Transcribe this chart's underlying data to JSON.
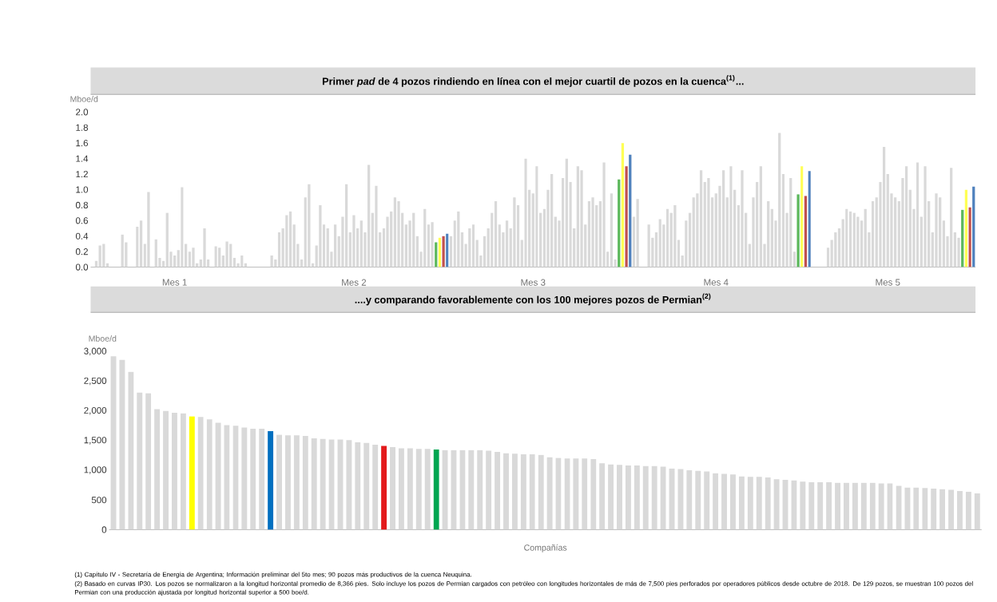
{
  "chart_data": [
    {
      "type": "bar",
      "title": "Primer *pad* de 4 pozos rindiendo en línea con el mejor cuartil de pozos en la cuenca$^{(1)}$...",
      "ylabel": "Mboe/d",
      "ylim": [
        0,
        2
      ],
      "yticks": [
        {
          "value": 0,
          "label": "0.0"
        },
        0.2,
        0.4,
        0.6,
        0.8,
        {
          "value": 1,
          "label": "1.0"
        },
        1.2,
        1.4,
        1.6,
        1.8,
        {
          "value": 2,
          "label": "2.0"
        }
      ],
      "categories": [
        null,
        null,
        null,
        null,
        null,
        null,
        null,
        null,
        null,
        null,
        null,
        null,
        null,
        null,
        null,
        null,
        null,
        null,
        null,
        null,
        null,
        null,
        "Mes 1",
        null,
        null,
        null,
        null,
        null,
        null,
        null,
        null,
        null,
        null,
        null,
        null,
        null,
        null,
        null,
        null,
        null,
        null,
        null,
        null,
        null,
        null,
        null,
        null,
        null,
        null,
        null,
        null,
        null,
        null,
        null,
        null,
        null,
        null,
        null,
        null,
        null,
        null,
        null,
        null,
        null,
        null,
        null,
        null,
        null,
        null,
        null,
        "Mes 2",
        null,
        null,
        null,
        null,
        null,
        null,
        null,
        null,
        null,
        null,
        null,
        null,
        null,
        null,
        null,
        null,
        null,
        null,
        null,
        null,
        null,
        null,
        null,
        null,
        null,
        null,
        null,
        null,
        null,
        null,
        null,
        null,
        null,
        null,
        null,
        null,
        null,
        null,
        null,
        null,
        null,
        null,
        null,
        null,
        null,
        null,
        null,
        "Mes 3",
        null,
        null,
        null,
        null,
        null,
        null,
        null,
        null,
        null,
        null,
        null,
        null,
        null,
        null,
        null,
        null,
        null,
        null,
        null,
        null,
        null,
        null,
        null,
        null,
        null,
        null,
        null,
        null,
        null,
        null,
        null,
        null,
        null,
        null,
        null,
        null,
        null,
        null,
        null,
        null,
        null,
        null,
        null,
        null,
        null,
        null,
        null,
        null,
        "Mes 4",
        null,
        null,
        null,
        null,
        null,
        null,
        null,
        null,
        null,
        null,
        null,
        null,
        null,
        null,
        null,
        null,
        null,
        null,
        null,
        null,
        null,
        null,
        null,
        null,
        null,
        null,
        null,
        null,
        null,
        null,
        null,
        null,
        null,
        null,
        null,
        null,
        null,
        null,
        null,
        null,
        null,
        null,
        null,
        null,
        null,
        "Mes 5",
        null,
        null,
        null,
        null,
        null,
        null,
        null,
        null,
        null,
        null,
        null,
        null,
        null,
        null,
        null,
        null,
        null,
        null,
        null,
        null,
        null,
        null,
        null
      ],
      "values": [
        0,
        0.08,
        0.28,
        0.3,
        0.05,
        0,
        0,
        0,
        0.42,
        0.32,
        0,
        0,
        0.52,
        0.6,
        0.3,
        0.97,
        0,
        0.36,
        0.12,
        0.08,
        0.7,
        0.2,
        0.15,
        0.22,
        1.03,
        0.3,
        0.2,
        0.25,
        0.05,
        0.1,
        0.5,
        0.1,
        0,
        0.27,
        0.25,
        0.15,
        0.33,
        0.3,
        0.12,
        0.05,
        0.15,
        0.05,
        0,
        0,
        null,
        null,
        null,
        null,
        0.15,
        0.1,
        0.45,
        0.5,
        0.67,
        0.72,
        0.55,
        0.3,
        0.1,
        0.9,
        1.07,
        0.05,
        0.28,
        0.8,
        0.55,
        0.5,
        0.2,
        0.55,
        0.4,
        0.65,
        1.07,
        0.45,
        0.67,
        0.5,
        0.6,
        0.45,
        1.32,
        0.7,
        1.05,
        0.45,
        0.5,
        0.65,
        0.72,
        0.9,
        0.85,
        0.7,
        0.55,
        0.6,
        0.7,
        0.4,
        0.2,
        0.75,
        0.55,
        0.58,
        0.32,
        0.38,
        0.4,
        0.43,
        0.4,
        0.6,
        0.72,
        0.45,
        0.3,
        0.5,
        0.55,
        0.35,
        0.15,
        0.4,
        0.5,
        0.7,
        0.85,
        0.55,
        0.45,
        0.6,
        0.5,
        0.9,
        0.8,
        0.35,
        1.4,
        1.0,
        0.95,
        1.3,
        0.7,
        0.75,
        1.0,
        1.2,
        0.65,
        0.6,
        1.15,
        1.4,
        1.1,
        0.5,
        1.3,
        1.25,
        0.55,
        0.85,
        0.9,
        0.8,
        0.85,
        1.35,
        0.2,
        0.95,
        0.1,
        1.13,
        1.6,
        1.3,
        1.45,
        0.65,
        0.88,
        0,
        0,
        0.55,
        0.38,
        0.45,
        0.62,
        0.55,
        0.75,
        0.7,
        0.8,
        0.35,
        0.15,
        0.6,
        0.7,
        0.9,
        0.95,
        1.25,
        1.1,
        1.15,
        0.9,
        0.95,
        1.05,
        1.25,
        0.9,
        1.3,
        1.0,
        0.8,
        1.25,
        0.7,
        0.3,
        0.9,
        1.1,
        1.3,
        0.3,
        0.85,
        0.75,
        0.6,
        1.73,
        1.2,
        0.7,
        1.15,
        0.2,
        0.94,
        1.3,
        0.92,
        1.24,
        0,
        0,
        0,
        0,
        0.25,
        0.35,
        0.45,
        0.5,
        0.62,
        0.75,
        0.72,
        0.7,
        0.65,
        0.6,
        0.75,
        0.45,
        0.85,
        0.9,
        1.1,
        1.55,
        1.2,
        0.95,
        0.9,
        0.85,
        1.15,
        1.3,
        1.0,
        0.75,
        1.35,
        0.65,
        1.3,
        0.85,
        0.45,
        0.95,
        0.9,
        0.6,
        0.4,
        1.28,
        0.45,
        0.38,
        0.74,
        1.0,
        0.77,
        1.04
      ],
      "colors": [
        "#d9d9d9",
        "#d9d9d9",
        "#d9d9d9",
        "#d9d9d9",
        "#d9d9d9",
        "#d9d9d9",
        "#d9d9d9",
        "#d9d9d9",
        "#d9d9d9",
        "#d9d9d9",
        "#d9d9d9",
        "#d9d9d9",
        "#d9d9d9",
        "#d9d9d9",
        "#d9d9d9",
        "#d9d9d9",
        "#d9d9d9",
        "#d9d9d9",
        "#d9d9d9",
        "#d9d9d9",
        "#d9d9d9",
        "#d9d9d9",
        "#d9d9d9",
        "#d9d9d9",
        "#d9d9d9",
        "#d9d9d9",
        "#d9d9d9",
        "#d9d9d9",
        "#d9d9d9",
        "#d9d9d9",
        "#d9d9d9",
        "#d9d9d9",
        "#d9d9d9",
        "#d9d9d9",
        "#d9d9d9",
        "#d9d9d9",
        "#d9d9d9",
        "#d9d9d9",
        "#d9d9d9",
        "#d9d9d9",
        "#d9d9d9",
        "#d9d9d9",
        "#d9d9d9",
        "#d9d9d9",
        "#d9d9d9",
        "#d9d9d9",
        "#d9d9d9",
        "#d9d9d9",
        "#d9d9d9",
        "#d9d9d9",
        "#d9d9d9",
        "#d9d9d9",
        "#d9d9d9",
        "#d9d9d9",
        "#d9d9d9",
        "#d9d9d9",
        "#d9d9d9",
        "#d9d9d9",
        "#d9d9d9",
        "#d9d9d9",
        "#d9d9d9",
        "#d9d9d9",
        "#d9d9d9",
        "#d9d9d9",
        "#d9d9d9",
        "#d9d9d9",
        "#d9d9d9",
        "#d9d9d9",
        "#d9d9d9",
        "#d9d9d9",
        "#d9d9d9",
        "#d9d9d9",
        "#d9d9d9",
        "#d9d9d9",
        "#d9d9d9",
        "#d9d9d9",
        "#d9d9d9",
        "#d9d9d9",
        "#d9d9d9",
        "#d9d9d9",
        "#d9d9d9",
        "#d9d9d9",
        "#d9d9d9",
        "#d9d9d9",
        "#d9d9d9",
        "#d9d9d9",
        "#d9d9d9",
        "#d9d9d9",
        "#d9d9d9",
        "#d9d9d9",
        "#d9d9d9",
        "#d9d9d9",
        "#5cb85c",
        "#ffff55",
        "#c0504d",
        "#4f81bd",
        "#d9d9d9",
        "#d9d9d9",
        "#d9d9d9",
        "#d9d9d9",
        "#d9d9d9",
        "#d9d9d9",
        "#d9d9d9",
        "#d9d9d9",
        "#d9d9d9",
        "#d9d9d9",
        "#d9d9d9",
        "#d9d9d9",
        "#d9d9d9",
        "#d9d9d9",
        "#d9d9d9",
        "#d9d9d9",
        "#d9d9d9",
        "#d9d9d9",
        "#d9d9d9",
        "#d9d9d9",
        "#d9d9d9",
        "#d9d9d9",
        "#d9d9d9",
        "#d9d9d9",
        "#d9d9d9",
        "#d9d9d9",
        "#d9d9d9",
        "#d9d9d9",
        "#d9d9d9",
        "#d9d9d9",
        "#d9d9d9",
        "#d9d9d9",
        "#d9d9d9",
        "#d9d9d9",
        "#d9d9d9",
        "#d9d9d9",
        "#d9d9d9",
        "#d9d9d9",
        "#d9d9d9",
        "#d9d9d9",
        "#d9d9d9",
        "#d9d9d9",
        "#d9d9d9",
        "#d9d9d9",
        "#d9d9d9",
        "#5cb85c",
        "#ffff55",
        "#c0504d",
        "#4f81bd",
        "#d9d9d9",
        "#d9d9d9",
        "#d9d9d9",
        "#d9d9d9",
        "#d9d9d9",
        "#d9d9d9",
        "#d9d9d9",
        "#d9d9d9",
        "#d9d9d9",
        "#d9d9d9",
        "#d9d9d9",
        "#d9d9d9",
        "#d9d9d9",
        "#d9d9d9",
        "#d9d9d9",
        "#d9d9d9",
        "#d9d9d9",
        "#d9d9d9",
        "#d9d9d9",
        "#d9d9d9",
        "#d9d9d9",
        "#d9d9d9",
        "#d9d9d9",
        "#d9d9d9",
        "#d9d9d9",
        "#d9d9d9",
        "#d9d9d9",
        "#d9d9d9",
        "#d9d9d9",
        "#d9d9d9",
        "#d9d9d9",
        "#d9d9d9",
        "#d9d9d9",
        "#d9d9d9",
        "#d9d9d9",
        "#d9d9d9",
        "#d9d9d9",
        "#d9d9d9",
        "#d9d9d9",
        "#d9d9d9",
        "#d9d9d9",
        "#d9d9d9",
        "#d9d9d9",
        "#d9d9d9",
        "#5cb85c",
        "#ffff55",
        "#c0504d",
        "#4f81bd",
        "#d9d9d9",
        "#d9d9d9",
        "#d9d9d9",
        "#d9d9d9",
        "#d9d9d9",
        "#d9d9d9",
        "#d9d9d9",
        "#d9d9d9",
        "#d9d9d9",
        "#d9d9d9",
        "#d9d9d9",
        "#d9d9d9",
        "#d9d9d9",
        "#d9d9d9",
        "#d9d9d9",
        "#d9d9d9",
        "#d9d9d9",
        "#d9d9d9",
        "#d9d9d9",
        "#d9d9d9",
        "#d9d9d9",
        "#d9d9d9",
        "#d9d9d9",
        "#d9d9d9",
        "#d9d9d9",
        "#d9d9d9",
        "#d9d9d9",
        "#d9d9d9",
        "#d9d9d9",
        "#d9d9d9",
        "#d9d9d9",
        "#d9d9d9",
        "#d9d9d9",
        "#d9d9d9",
        "#d9d9d9",
        "#d9d9d9",
        "#d9d9d9",
        "#d9d9d9",
        "#d9d9d9",
        "#d9d9d9",
        "#5cb85c",
        "#ffff55",
        "#c0504d",
        "#4f81bd"
      ],
      "annotations": [
        "(1) Capítulo IV - Secretaría de Energía de Argentina; Información preliminar del 5to mes; 90 pozos más productivos de la cuenca Neuquina."
      ]
    },
    {
      "type": "bar",
      "title": "....y comparando favorablemente con los 100 mejores pozos de Permian$^{(2)}$",
      "ylabel": "Mboe/d",
      "xlabel": "Compañías",
      "ylim": [
        0,
        3000
      ],
      "yticks": [
        0,
        500,
        {
          "value": 1000,
          "label": "1,000"
        },
        {
          "value": 1500,
          "label": "1,500"
        },
        {
          "value": 2000,
          "label": "2,000"
        },
        {
          "value": 2500,
          "label": "2,500"
        },
        {
          "value": 3000,
          "label": "3,000"
        }
      ],
      "categories": [
        null,
        null,
        null,
        null,
        null,
        null,
        null,
        null,
        null,
        null,
        null,
        null,
        null,
        null,
        null,
        null,
        null,
        null,
        null,
        null,
        null,
        null,
        null,
        null,
        null,
        null,
        null,
        null,
        null,
        null,
        null,
        null,
        null,
        null,
        null,
        null,
        null,
        null,
        null,
        null,
        null,
        null,
        null,
        null,
        null,
        null,
        null,
        null,
        null,
        null,
        null,
        null,
        null,
        null,
        null,
        null,
        null,
        null,
        null,
        null,
        null,
        null,
        null,
        null,
        null,
        null,
        null,
        null,
        null,
        null,
        null,
        null,
        null,
        null,
        null,
        null,
        null,
        null,
        null,
        null,
        null,
        null,
        null,
        null,
        null,
        null,
        null,
        null,
        null,
        null,
        null,
        null,
        null,
        null,
        null,
        null,
        null,
        null,
        null,
        null
      ],
      "values": [
        2920,
        2860,
        2660,
        2310,
        2300,
        2030,
        2000,
        1970,
        1960,
        1910,
        1900,
        1860,
        1800,
        1760,
        1750,
        1720,
        1700,
        1700,
        1660,
        1600,
        1590,
        1590,
        1580,
        1540,
        1530,
        1520,
        1520,
        1510,
        1470,
        1460,
        1430,
        1410,
        1390,
        1370,
        1370,
        1360,
        1360,
        1350,
        1340,
        1340,
        1340,
        1340,
        1340,
        1330,
        1310,
        1290,
        1280,
        1270,
        1270,
        1260,
        1220,
        1210,
        1200,
        1200,
        1200,
        1190,
        1120,
        1100,
        1090,
        1080,
        1080,
        1070,
        1070,
        1060,
        1030,
        1020,
        1000,
        990,
        980,
        950,
        940,
        930,
        900,
        890,
        890,
        880,
        850,
        840,
        830,
        810,
        800,
        800,
        800,
        790,
        790,
        790,
        790,
        790,
        780,
        780,
        740,
        710,
        710,
        700,
        690,
        680,
        670,
        650,
        640,
        610
      ],
      "colors": [
        "#d9d9d9",
        "#d9d9d9",
        "#d9d9d9",
        "#d9d9d9",
        "#d9d9d9",
        "#d9d9d9",
        "#d9d9d9",
        "#d9d9d9",
        "#d9d9d9",
        "#ffff00",
        "#d9d9d9",
        "#d9d9d9",
        "#d9d9d9",
        "#d9d9d9",
        "#d9d9d9",
        "#d9d9d9",
        "#d9d9d9",
        "#d9d9d9",
        "#0070c0",
        "#d9d9d9",
        "#d9d9d9",
        "#d9d9d9",
        "#d9d9d9",
        "#d9d9d9",
        "#d9d9d9",
        "#d9d9d9",
        "#d9d9d9",
        "#d9d9d9",
        "#d9d9d9",
        "#d9d9d9",
        "#d9d9d9",
        "#e31a1c",
        "#d9d9d9",
        "#d9d9d9",
        "#d9d9d9",
        "#d9d9d9",
        "#d9d9d9",
        "#00a651",
        "#d9d9d9",
        "#d9d9d9",
        "#d9d9d9",
        "#d9d9d9",
        "#d9d9d9",
        "#d9d9d9",
        "#d9d9d9",
        "#d9d9d9",
        "#d9d9d9",
        "#d9d9d9",
        "#d9d9d9",
        "#d9d9d9",
        "#d9d9d9",
        "#d9d9d9",
        "#d9d9d9",
        "#d9d9d9",
        "#d9d9d9",
        "#d9d9d9",
        "#d9d9d9",
        "#d9d9d9",
        "#d9d9d9",
        "#d9d9d9",
        "#d9d9d9",
        "#d9d9d9",
        "#d9d9d9",
        "#d9d9d9",
        "#d9d9d9",
        "#d9d9d9",
        "#d9d9d9",
        "#d9d9d9",
        "#d9d9d9",
        "#d9d9d9",
        "#d9d9d9",
        "#d9d9d9",
        "#d9d9d9",
        "#d9d9d9",
        "#d9d9d9",
        "#d9d9d9",
        "#d9d9d9",
        "#d9d9d9",
        "#d9d9d9",
        "#d9d9d9",
        "#d9d9d9",
        "#d9d9d9",
        "#d9d9d9",
        "#d9d9d9",
        "#d9d9d9",
        "#d9d9d9",
        "#d9d9d9",
        "#d9d9d9",
        "#d9d9d9",
        "#d9d9d9",
        "#d9d9d9",
        "#d9d9d9",
        "#d9d9d9",
        "#d9d9d9",
        "#d9d9d9",
        "#d9d9d9",
        "#d9d9d9",
        "#d9d9d9",
        "#d9d9d9",
        "#d9d9d9"
      ],
      "annotations": [
        "(2) Basado en curvas IP30. Los pozos se normalizaron a la longitud horizontal promedio de 8,366 pies. Solo incluye los pozos de Permian cargados con petróleo con longitudes horizontales de más de 7,500 pies perforados por operadores públicos desde octubre de 2018. De 129 pozos, se muestran 100 pozos del Permian con una producción ajustada por longitud horizontal superior a 500 boe/d."
      ]
    }
  ]
}
